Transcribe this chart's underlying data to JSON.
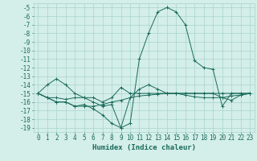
{
  "x": [
    0,
    1,
    2,
    3,
    4,
    5,
    6,
    7,
    8,
    9,
    10,
    11,
    12,
    13,
    14,
    15,
    16,
    17,
    18,
    19,
    20,
    21,
    22,
    23
  ],
  "line1": [
    -15,
    -14,
    -13.3,
    -14,
    -15,
    -15.5,
    -16,
    -16.5,
    -16.3,
    -19,
    -18.5,
    -11,
    -8,
    -5.5,
    -5,
    -5.5,
    -7,
    -11.2,
    -12,
    -12.2,
    -16.5,
    -15,
    -15,
    -15
  ],
  "line2": [
    -15,
    -15.5,
    -16,
    -16,
    -16.5,
    -16.3,
    -16.8,
    -17.5,
    -18.5,
    -19,
    -15.5,
    -14.5,
    -14,
    -14.5,
    -15,
    -15,
    -15.2,
    -15.4,
    -15.5,
    -15.5,
    -15.5,
    -15.3,
    -15.2,
    -15
  ],
  "line3": [
    -15,
    -15.5,
    -16,
    -16,
    -16.5,
    -16.5,
    -16.5,
    -16.3,
    -16,
    -15.8,
    -15.5,
    -15.3,
    -15.2,
    -15.1,
    -15,
    -15,
    -15,
    -15,
    -15,
    -15,
    -15,
    -15,
    -15,
    -15
  ],
  "line4": [
    -15,
    -15.5,
    -15.5,
    -15.7,
    -15.5,
    -15.5,
    -15.5,
    -16,
    -15.5,
    -14.3,
    -15,
    -15,
    -15,
    -15,
    -15,
    -15,
    -15,
    -15,
    -15,
    -15,
    -15.5,
    -15.8,
    -15.2,
    -15
  ],
  "background_color": "#d4eeea",
  "grid_color": "#a8d4cc",
  "line_color": "#1a6b5a",
  "xlabel": "Humidex (Indice chaleur)",
  "ylim": [
    -19.5,
    -4.5
  ],
  "xlim": [
    -0.5,
    23.5
  ],
  "yticks": [
    -5,
    -6,
    -7,
    -8,
    -9,
    -10,
    -11,
    -12,
    -13,
    -14,
    -15,
    -16,
    -17,
    -18,
    -19
  ],
  "xticks": [
    0,
    1,
    2,
    3,
    4,
    5,
    6,
    7,
    8,
    9,
    10,
    11,
    12,
    13,
    14,
    15,
    16,
    17,
    18,
    19,
    20,
    21,
    22,
    23
  ],
  "xlabel_fontsize": 6.5,
  "tick_fontsize": 5.5
}
